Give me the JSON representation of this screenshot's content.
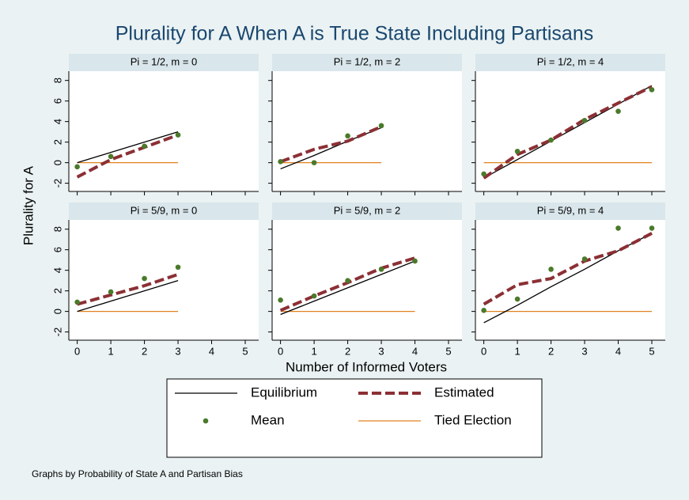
{
  "chart_data": {
    "type": "line",
    "title": "Plurality for A When A is True State Including Partisans",
    "xlabel": "Number of Informed Voters",
    "ylabel": "Plurality for A",
    "note": "Graphs by Probability of State A and Partisan Bias",
    "xlim": [
      -0.25,
      5.4
    ],
    "xticks": [
      0,
      1,
      2,
      3,
      4,
      5
    ],
    "ylim": [
      -2.8,
      8.9
    ],
    "yticks": [
      -2,
      0,
      2,
      4,
      6,
      8
    ],
    "grid": false,
    "series": [
      {
        "name": "Equilibrium",
        "color": "#000000",
        "style": "solid"
      },
      {
        "name": "Estimated",
        "color": "#8b3035",
        "style": "dashed"
      },
      {
        "name": "Mean",
        "color": "#4a7a2a",
        "style": "markers"
      },
      {
        "name": "Tied Election",
        "color": "#e0821e",
        "style": "solid"
      }
    ],
    "panels": [
      {
        "title": "Pi = 1/2, m = 0",
        "x": [
          0,
          1,
          2,
          3
        ],
        "values": [
          [
            0,
            1,
            2,
            3
          ],
          [
            -1.4,
            0.3,
            1.5,
            2.7
          ],
          [
            -0.4,
            0.6,
            1.6,
            2.7
          ],
          [
            0,
            0,
            0,
            0
          ]
        ]
      },
      {
        "title": "Pi = 1/2, m = 2",
        "x": [
          0,
          1,
          2,
          3
        ],
        "values": [
          [
            -0.6,
            0.7,
            2.1,
            3.4
          ],
          [
            0.1,
            1.3,
            2.1,
            3.5
          ],
          [
            0.1,
            0.0,
            2.6,
            3.6
          ],
          [
            0,
            0,
            0,
            0
          ]
        ]
      },
      {
        "title": "Pi = 1/2, m = 4",
        "x": [
          0,
          1,
          2,
          3,
          4,
          5
        ],
        "values": [
          [
            -1.5,
            0.3,
            2.1,
            3.9,
            5.7,
            7.5
          ],
          [
            -1.5,
            0.8,
            2.2,
            4.2,
            5.8,
            7.4
          ],
          [
            -1.1,
            1.1,
            2.2,
            4.1,
            5.0,
            7.1
          ],
          [
            0,
            0,
            0,
            0,
            0,
            0
          ]
        ]
      },
      {
        "title": "Pi = 5/9, m = 0",
        "x": [
          0,
          1,
          2,
          3
        ],
        "values": [
          [
            0,
            1,
            2,
            3
          ],
          [
            0.7,
            1.6,
            2.5,
            3.6
          ],
          [
            0.9,
            1.9,
            3.2,
            4.3
          ],
          [
            0,
            0,
            0,
            0
          ]
        ]
      },
      {
        "title": "Pi = 5/9, m = 2",
        "x": [
          0,
          1,
          2,
          3,
          4
        ],
        "values": [
          [
            -0.3,
            1.0,
            2.3,
            3.6,
            4.9
          ],
          [
            0.1,
            1.5,
            2.8,
            4.2,
            5.2
          ],
          [
            1.1,
            1.5,
            3.0,
            4.1,
            4.9
          ],
          [
            0,
            0,
            0,
            0,
            0
          ]
        ]
      },
      {
        "title": "Pi = 5/9, m = 4",
        "x": [
          0,
          1,
          2,
          3,
          4,
          5
        ],
        "values": [
          [
            -1.1,
            0.6,
            2.4,
            4.1,
            5.9,
            7.6
          ],
          [
            0.7,
            2.6,
            3.2,
            4.9,
            5.9,
            7.6
          ],
          [
            0.1,
            1.2,
            4.1,
            5.1,
            8.1,
            8.1
          ],
          [
            0,
            0,
            0,
            0,
            0,
            0
          ]
        ]
      }
    ]
  }
}
